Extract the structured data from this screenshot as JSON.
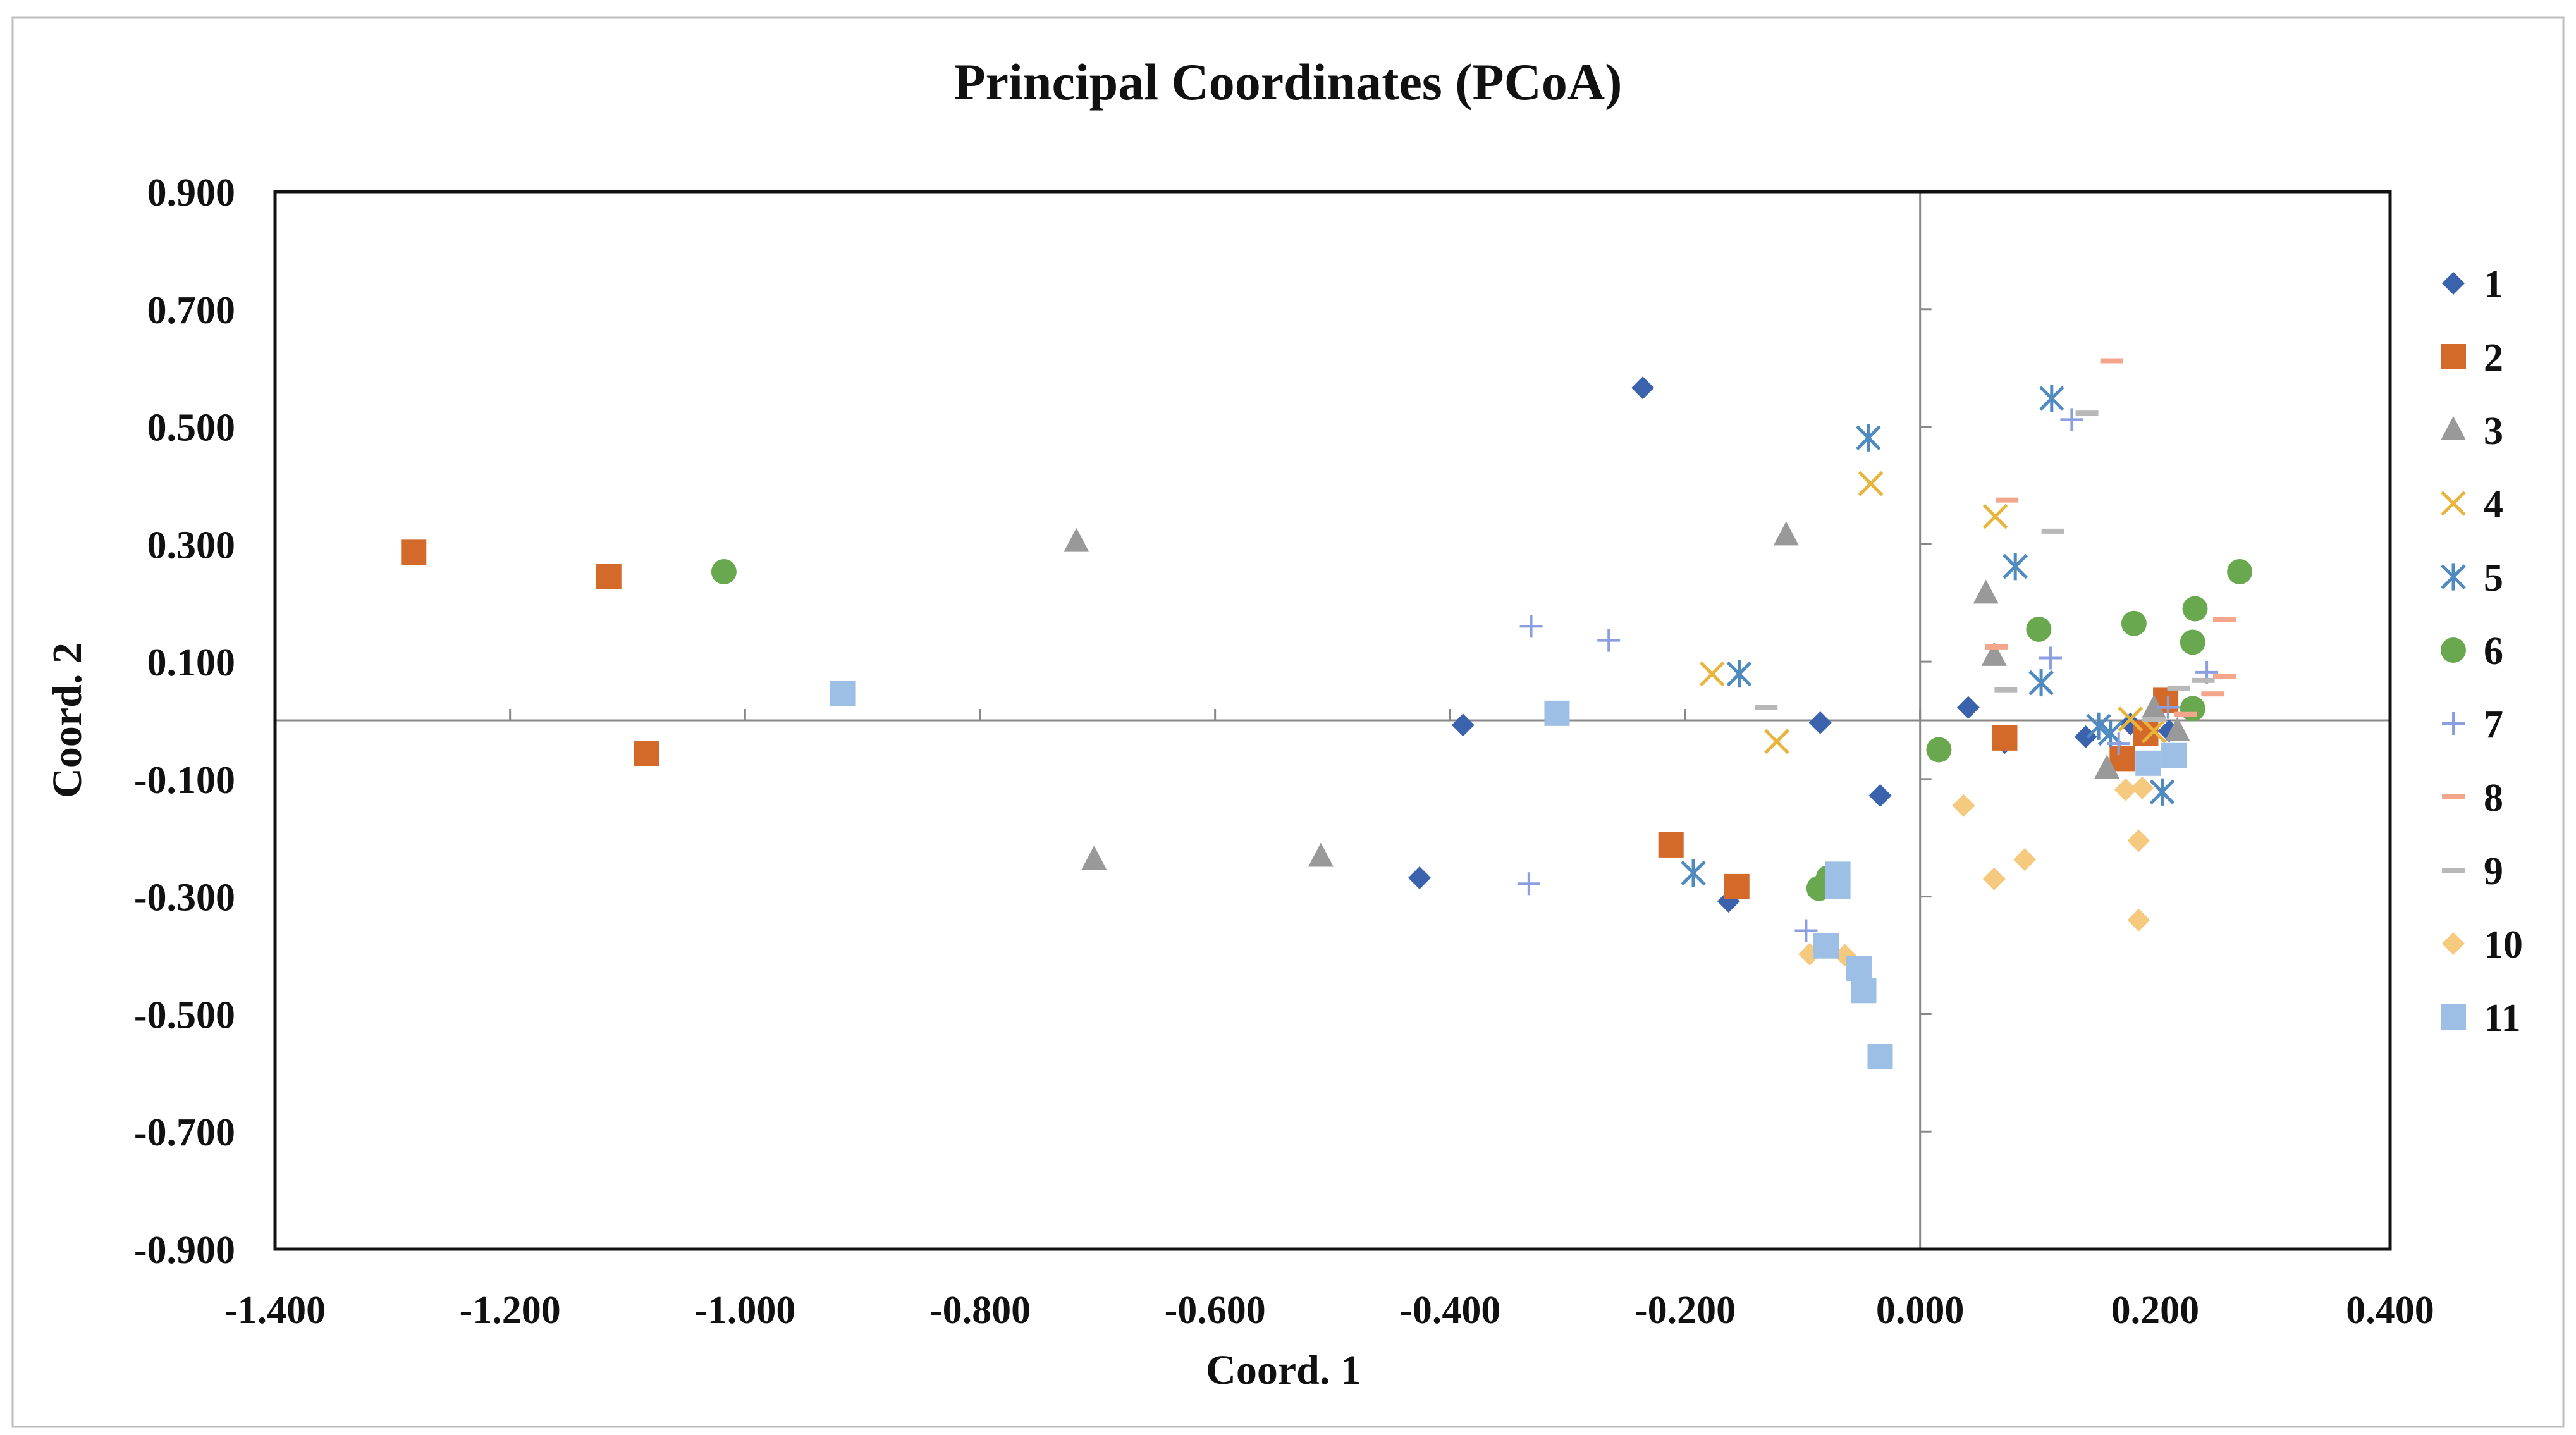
{
  "chart_data": {
    "type": "scatter",
    "title": "Principal Coordinates (PCoA)",
    "xlabel": "Coord. 1",
    "ylabel": "Coord. 2",
    "xlim": [
      -1.4,
      0.4
    ],
    "ylim": [
      -0.9,
      0.9
    ],
    "x_ticks": [
      -1.4,
      -1.2,
      -1.0,
      -0.8,
      -0.6,
      -0.4,
      -0.2,
      0.0,
      0.2,
      0.4
    ],
    "x_tick_labels": [
      "-1.400",
      "-1.200",
      "-1.000",
      "-0.800",
      "-0.600",
      "-0.400",
      "-0.200",
      "0.000",
      "0.200",
      "0.400"
    ],
    "y_ticks": [
      0.9,
      0.7,
      0.5,
      0.3,
      0.1,
      -0.1,
      -0.3,
      -0.5,
      -0.7,
      -0.9
    ],
    "y_tick_labels": [
      "0.900",
      "0.700",
      "0.500",
      "0.300",
      "0.100",
      "-0.100",
      "-0.300",
      "-0.500",
      "-0.700",
      "-0.900"
    ],
    "legend_position": "right",
    "series": [
      {
        "name": "1",
        "marker": "diamond",
        "color": "#3a62ad",
        "points": [
          [
            -0.236,
            0.566
          ],
          [
            -0.389,
            -0.008
          ],
          [
            -0.085,
            -0.004
          ],
          [
            -0.034,
            -0.128
          ],
          [
            -0.426,
            -0.268
          ],
          [
            -0.163,
            -0.308
          ],
          [
            0.041,
            0.022
          ],
          [
            0.072,
            -0.038
          ],
          [
            0.141,
            -0.028
          ],
          [
            0.179,
            -0.006
          ],
          [
            0.212,
            -0.018
          ]
        ]
      },
      {
        "name": "2",
        "marker": "square",
        "color": "#d46a2a",
        "points": [
          [
            -1.282,
            0.286
          ],
          [
            -1.116,
            0.245
          ],
          [
            -1.084,
            -0.056
          ],
          [
            -0.212,
            -0.212
          ],
          [
            -0.156,
            -0.283
          ],
          [
            0.072,
            -0.03
          ],
          [
            0.172,
            -0.065
          ],
          [
            0.192,
            -0.022
          ],
          [
            0.209,
            0.034
          ]
        ]
      },
      {
        "name": "3",
        "marker": "triangle",
        "color": "#999999",
        "points": [
          [
            -0.718,
            0.304
          ],
          [
            -0.703,
            -0.237
          ],
          [
            -0.51,
            -0.232
          ],
          [
            -0.114,
            0.315
          ],
          [
            0.056,
            0.216
          ],
          [
            0.063,
            0.11
          ],
          [
            0.159,
            -0.082
          ],
          [
            0.199,
            0.02
          ],
          [
            0.219,
            -0.018
          ]
        ]
      },
      {
        "name": "4",
        "marker": "x",
        "color": "#e8b43c",
        "points": [
          [
            -0.042,
            0.403
          ],
          [
            -0.177,
            0.079
          ],
          [
            -0.122,
            -0.036
          ],
          [
            0.064,
            0.347
          ],
          [
            0.179,
            0.002
          ],
          [
            0.199,
            -0.018
          ]
        ]
      },
      {
        "name": "5",
        "marker": "asterisk",
        "color": "#4f8ac0",
        "points": [
          [
            -0.044,
            0.481
          ],
          [
            -0.154,
            0.079
          ],
          [
            -0.193,
            -0.26
          ],
          [
            0.081,
            0.262
          ],
          [
            0.103,
            0.064
          ],
          [
            0.112,
            0.548
          ],
          [
            0.152,
            -0.01
          ],
          [
            0.162,
            -0.022
          ],
          [
            0.206,
            -0.122
          ]
        ]
      },
      {
        "name": "6",
        "marker": "circle",
        "color": "#6aa84f",
        "points": [
          [
            -1.018,
            0.253
          ],
          [
            -0.086,
            -0.286
          ],
          [
            -0.078,
            -0.268
          ],
          [
            0.016,
            -0.05
          ],
          [
            0.101,
            0.155
          ],
          [
            0.182,
            0.165
          ],
          [
            0.232,
            0.133
          ],
          [
            0.234,
            0.19
          ],
          [
            0.272,
            0.253
          ],
          [
            0.232,
            0.02
          ]
        ]
      },
      {
        "name": "7",
        "marker": "plus",
        "color": "#8b9ee0",
        "points": [
          [
            -0.331,
            0.16
          ],
          [
            -0.265,
            0.136
          ],
          [
            -0.333,
            -0.278
          ],
          [
            -0.097,
            -0.358
          ],
          [
            0.111,
            0.106
          ],
          [
            0.129,
            0.512
          ],
          [
            0.169,
            -0.04
          ],
          [
            0.211,
            0.022
          ],
          [
            0.244,
            0.082
          ]
        ]
      },
      {
        "name": "8",
        "marker": "dash",
        "color": "#f4a68c",
        "points": [
          [
            0.163,
            0.612
          ],
          [
            0.074,
            0.375
          ],
          [
            0.065,
            0.125
          ],
          [
            0.249,
            0.045
          ],
          [
            0.259,
            0.172
          ],
          [
            0.259,
            0.075
          ],
          [
            0.226,
            0.01
          ]
        ]
      },
      {
        "name": "9",
        "marker": "dash",
        "color": "#b8b8b8",
        "points": [
          [
            0.142,
            0.523
          ],
          [
            0.113,
            0.322
          ],
          [
            0.073,
            0.052
          ],
          [
            -0.131,
            0.022
          ],
          [
            0.22,
            0.055
          ],
          [
            0.241,
            0.068
          ],
          [
            0.199,
            0.002
          ]
        ]
      },
      {
        "name": "10",
        "marker": "diamond",
        "color": "#f5c97e",
        "points": [
          [
            0.037,
            -0.145
          ],
          [
            0.063,
            -0.27
          ],
          [
            0.089,
            -0.237
          ],
          [
            0.186,
            -0.205
          ],
          [
            0.186,
            -0.34
          ],
          [
            0.175,
            -0.118
          ],
          [
            0.189,
            -0.115
          ],
          [
            -0.094,
            -0.398
          ],
          [
            -0.064,
            -0.4
          ]
        ]
      },
      {
        "name": "11",
        "marker": "square",
        "color": "#9dbfe5",
        "points": [
          [
            -0.917,
            0.046
          ],
          [
            -0.309,
            0.012
          ],
          [
            -0.07,
            -0.262
          ],
          [
            -0.07,
            -0.282
          ],
          [
            -0.08,
            -0.384
          ],
          [
            -0.052,
            -0.422
          ],
          [
            -0.048,
            -0.46
          ],
          [
            -0.034,
            -0.572
          ],
          [
            0.194,
            -0.073
          ],
          [
            0.216,
            -0.06
          ]
        ]
      }
    ]
  }
}
